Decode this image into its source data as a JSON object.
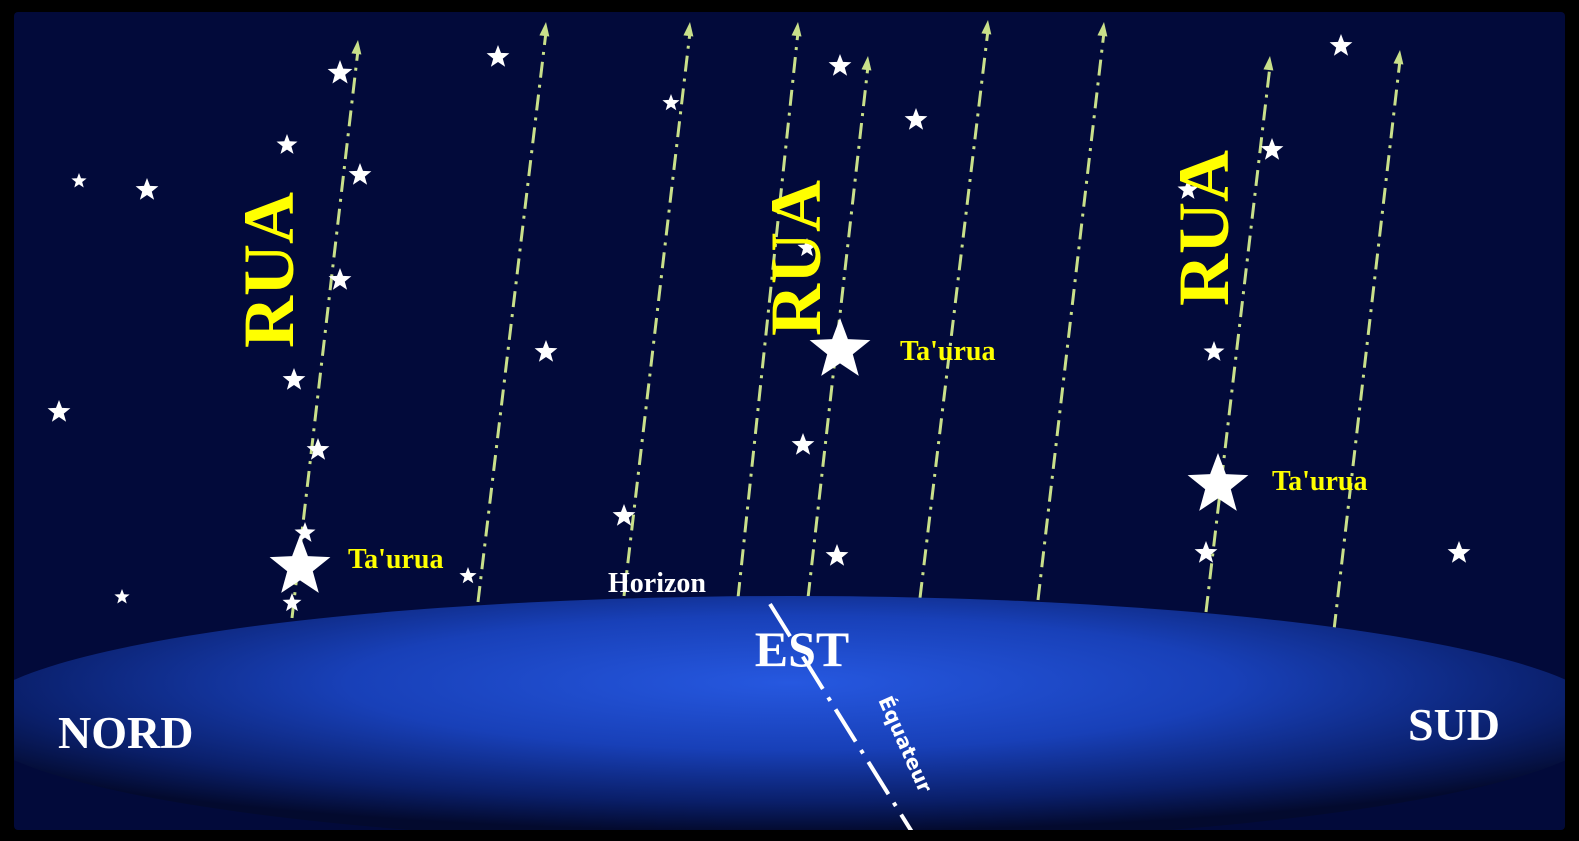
{
  "diagram": {
    "labels": {
      "rua": [
        "RUA",
        "RUA",
        "RUA"
      ],
      "taurua": [
        "Ta'urua",
        "Ta'urua",
        "Ta'urua"
      ],
      "horizon": "Horizon",
      "east": "EST",
      "north": "NORD",
      "south": "SUD",
      "equator": "Équateur"
    },
    "colors": {
      "sky": "#020a3a",
      "border": "#000000",
      "ground_center": "#1f4fd8",
      "ground_edge": "#030a2e",
      "star_path": "#c9e08a",
      "rua_label": "#ffff00",
      "taurua_label": "#ffff00",
      "star": "#ffffff",
      "cardinal_label": "#ffffff"
    },
    "icons": {
      "star": "star-icon",
      "path_arrow": "arrow-up-icon"
    }
  }
}
